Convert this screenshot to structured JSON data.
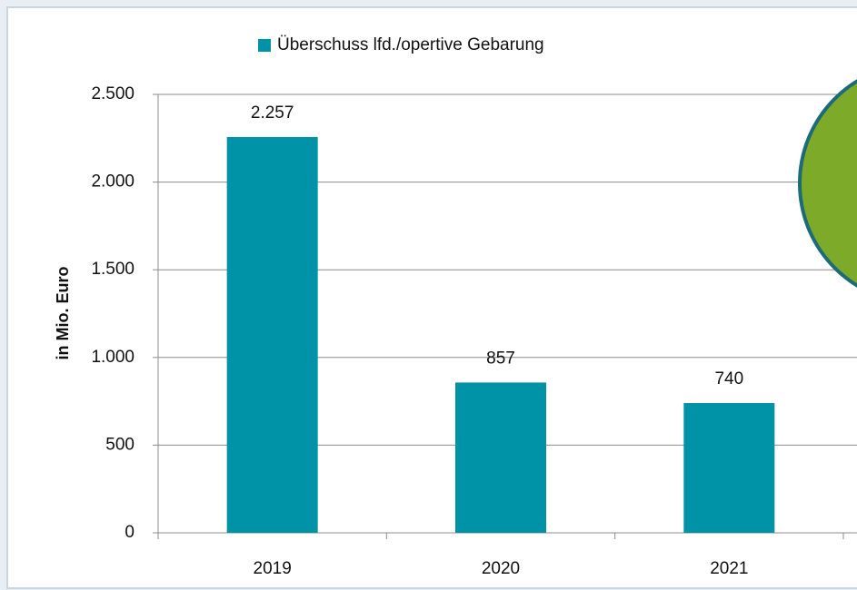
{
  "chart_data": {
    "type": "bar",
    "series": [
      {
        "name": "Überschuss lfd./opertive Gebarung",
        "color": "#0092a6",
        "values": [
          2257,
          857,
          740
        ],
        "value_labels": [
          "2.257",
          "857",
          "740"
        ]
      }
    ],
    "categories": [
      "2019",
      "2020",
      "2021"
    ],
    "y_label": "in Mio. Euro",
    "ylim": [
      0,
      2500
    ],
    "yticks": [
      0,
      500,
      {
        "value": 1000,
        "label": "1.000"
      },
      {
        "value": 1500,
        "label": "1.500"
      },
      {
        "value": 2000,
        "label": "2.000"
      },
      {
        "value": 2500,
        "label": "2.500"
      }
    ],
    "grid": true,
    "legend": "top"
  }
}
